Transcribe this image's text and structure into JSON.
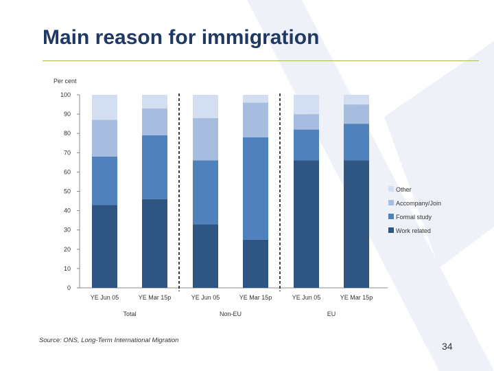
{
  "slide": {
    "title": "Main reason for immigration",
    "source": "Source: ONS, Long-Term International Migration",
    "page_number": "34"
  },
  "colors": {
    "Other": "#d3dff0",
    "Accompany/Join": "#a6bddf",
    "Formal study": "#4f81bd",
    "Work related": "#2f5583",
    "title": "#1f3864",
    "rule": "#a9b84a"
  },
  "chart_data": {
    "type": "bar",
    "stacked": true,
    "ylabel": "Per cent",
    "ylim": [
      0,
      100
    ],
    "yticks": [
      0,
      10,
      20,
      30,
      40,
      50,
      60,
      70,
      80,
      90,
      100
    ],
    "categories": [
      "YE Jun 05",
      "YE Mar 15p",
      "YE Jun 05",
      "YE Mar 15p",
      "YE Jun 05",
      "YE Mar 15p"
    ],
    "groups": [
      {
        "label": "Total",
        "bars": [
          0,
          1
        ]
      },
      {
        "label": "Non-EU",
        "bars": [
          2,
          3
        ]
      },
      {
        "label": "EU",
        "bars": [
          4,
          5
        ]
      }
    ],
    "series": [
      {
        "name": "Work related",
        "values": [
          43,
          46,
          33,
          25,
          66,
          66
        ]
      },
      {
        "name": "Formal study",
        "values": [
          25,
          33,
          33,
          53,
          16,
          19
        ]
      },
      {
        "name": "Accompany/Join",
        "values": [
          19,
          14,
          22,
          18,
          8,
          10
        ]
      },
      {
        "name": "Other",
        "values": [
          13,
          7,
          12,
          4,
          10,
          5
        ]
      }
    ],
    "legend": [
      "Other",
      "Accompany/Join",
      "Formal study",
      "Work related"
    ],
    "legend_position": "right"
  }
}
